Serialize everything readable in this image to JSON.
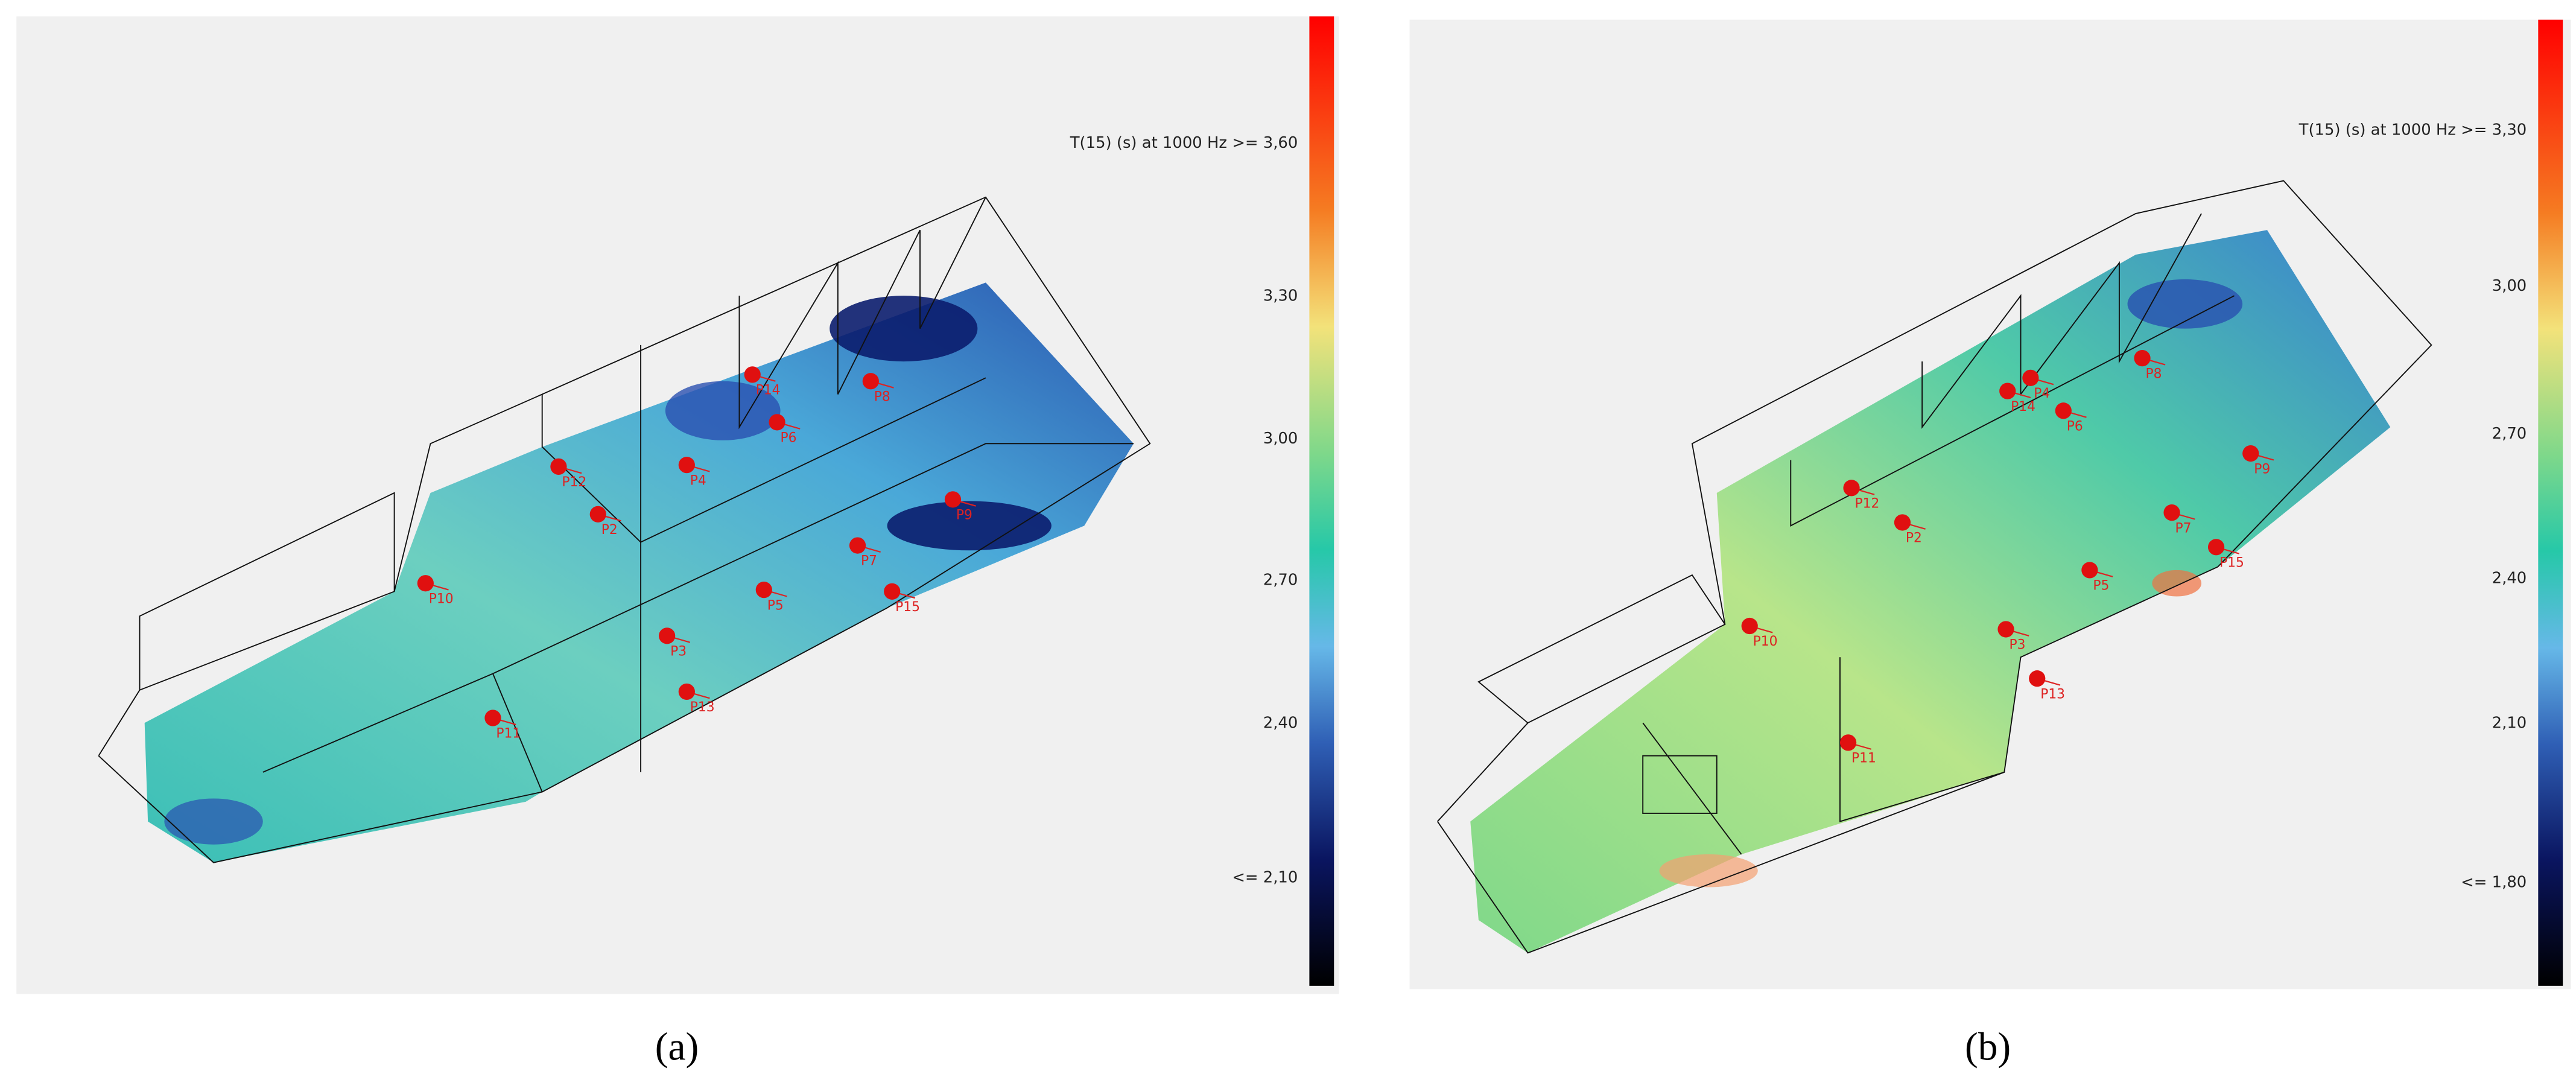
{
  "panels": [
    {
      "caption": "(a)",
      "legend": {
        "title": "T(15) (s)  at 1000 Hz >= 3,60",
        "ticks": [
          "3,30",
          "3,00",
          "2,70",
          "2,40"
        ],
        "bottom": "<= 2,10"
      },
      "receivers": [
        "P12",
        "P2",
        "P4",
        "P14",
        "P6",
        "P8",
        "P10",
        "P9",
        "P7",
        "P5",
        "P3",
        "P13",
        "P11",
        "P15"
      ]
    },
    {
      "caption": "(b)",
      "legend": {
        "title": "T(15) (s)  at 1000 Hz >= 3,30",
        "ticks": [
          "3,00",
          "2,70",
          "2,40",
          "2,10"
        ],
        "bottom": "<= 1,80"
      },
      "receivers": [
        "P12",
        "P2",
        "P4",
        "P14",
        "P6",
        "P8",
        "P10",
        "P9",
        "P7",
        "P5",
        "P3",
        "P13",
        "P11",
        "P15"
      ]
    }
  ]
}
